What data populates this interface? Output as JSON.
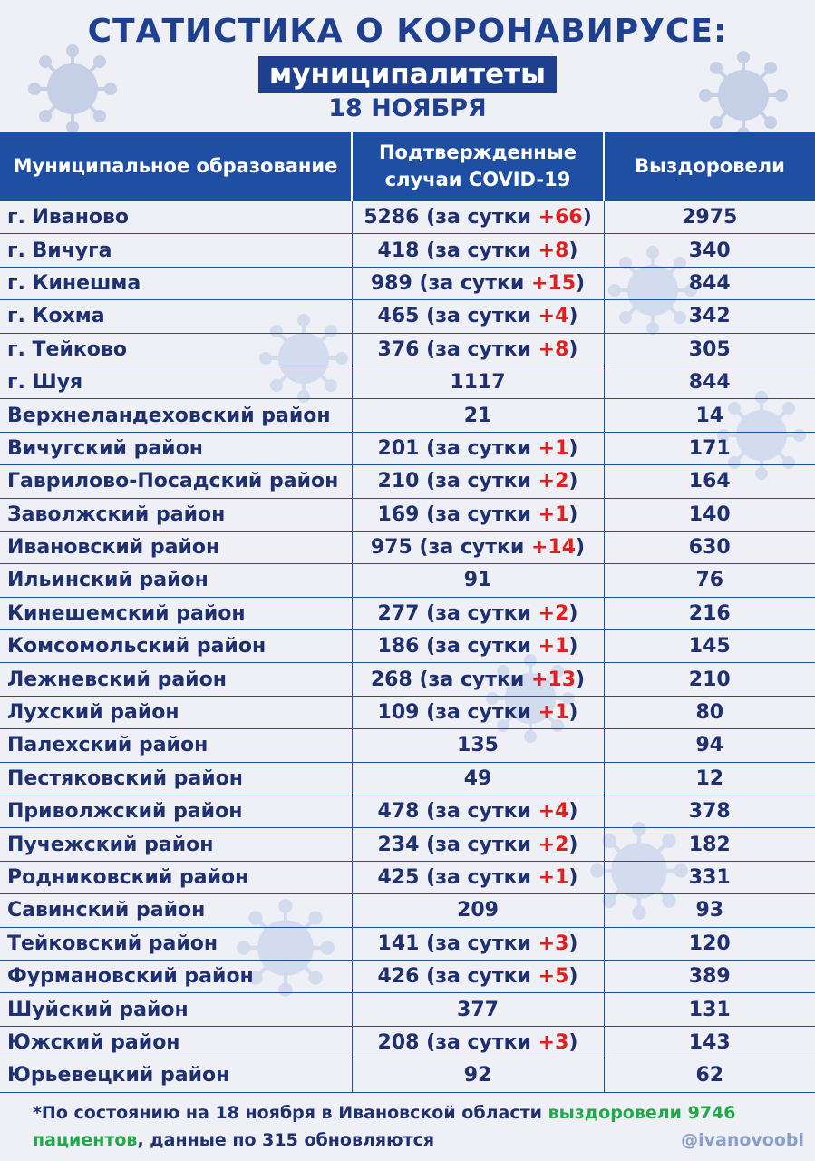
{
  "header": {
    "title": "СТАТИСТИКА О КОРОНАВИРУСЕ:",
    "subtitle": "муниципалитеты",
    "date": "18 НОЯБРЯ"
  },
  "table": {
    "columns": [
      "Муниципальное образование",
      "Подтвержденные случаи COVID-19",
      "Выздоровели"
    ],
    "daily_prefix": "(за сутки",
    "daily_suffix": ")",
    "rows": [
      {
        "name": "г. Иваново",
        "total": "5286",
        "daily": "+66",
        "recovered": "2975"
      },
      {
        "name": "г. Вичуга",
        "total": "418",
        "daily": "+8",
        "recovered": "340"
      },
      {
        "name": "г. Кинешма",
        "total": "989",
        "daily": "+15",
        "recovered": "844"
      },
      {
        "name": "г. Кохма",
        "total": "465",
        "daily": "+4",
        "recovered": "342"
      },
      {
        "name": "г. Тейково",
        "total": "376",
        "daily": "+8",
        "recovered": "305"
      },
      {
        "name": "г. Шуя",
        "total": "1117",
        "daily": "",
        "recovered": "844"
      },
      {
        "name": "Верхнеландеховский район",
        "total": "21",
        "daily": "",
        "recovered": "14"
      },
      {
        "name": "Вичугский район",
        "total": "201",
        "daily": "+1",
        "recovered": "171"
      },
      {
        "name": "Гаврилово-Посадский район",
        "total": "210",
        "daily": "+2",
        "recovered": "164"
      },
      {
        "name": "Заволжский район",
        "total": "169",
        "daily": "+1",
        "recovered": "140"
      },
      {
        "name": "Ивановский район",
        "total": "975",
        "daily": "+14",
        "recovered": "630"
      },
      {
        "name": "Ильинский район",
        "total": "91",
        "daily": "",
        "recovered": "76"
      },
      {
        "name": "Кинешемский район",
        "total": "277",
        "daily": "+2",
        "recovered": "216"
      },
      {
        "name": "Комсомольский район",
        "total": "186",
        "daily": "+1",
        "recovered": "145"
      },
      {
        "name": "Лежневский район",
        "total": "268",
        "daily": "+13",
        "recovered": "210"
      },
      {
        "name": "Лухский район",
        "total": "109",
        "daily": "+1",
        "recovered": "80"
      },
      {
        "name": "Палехский район",
        "total": "135",
        "daily": "",
        "recovered": "94"
      },
      {
        "name": "Пестяковский район",
        "total": "49",
        "daily": "",
        "recovered": "12"
      },
      {
        "name": "Приволжский район",
        "total": "478",
        "daily": "+4",
        "recovered": "378"
      },
      {
        "name": "Пучежский район",
        "total": "234",
        "daily": "+2",
        "recovered": "182"
      },
      {
        "name": "Родниковский район",
        "total": "425",
        "daily": "+1",
        "recovered": "331"
      },
      {
        "name": "Савинский район",
        "total": "209",
        "daily": "",
        "recovered": "93"
      },
      {
        "name": "Тейковский район",
        "total": "141",
        "daily": "+3",
        "recovered": "120"
      },
      {
        "name": "Фурмановский район",
        "total": "426",
        "daily": "+5",
        "recovered": "389"
      },
      {
        "name": "Шуйский район",
        "total": "377",
        "daily": "",
        "recovered": "131"
      },
      {
        "name": "Южский район",
        "total": "208",
        "daily": "+3",
        "recovered": "143"
      },
      {
        "name": "Юрьевецкий район",
        "total": "92",
        "daily": "",
        "recovered": "62"
      }
    ]
  },
  "footer": {
    "note_start": "*По состоянию на 18 ноября в Ивановской области ",
    "note_green": "выздоровели 9746 пациентов",
    "note_end": ", данные по 315 обновляются",
    "handle": "@ivanovoobl"
  },
  "colors": {
    "accent": "#1f3f8f",
    "header_bg": "#1f4fa3",
    "increase": "#e02020",
    "highlight": "#22a84a",
    "decor": "virus-icon"
  }
}
